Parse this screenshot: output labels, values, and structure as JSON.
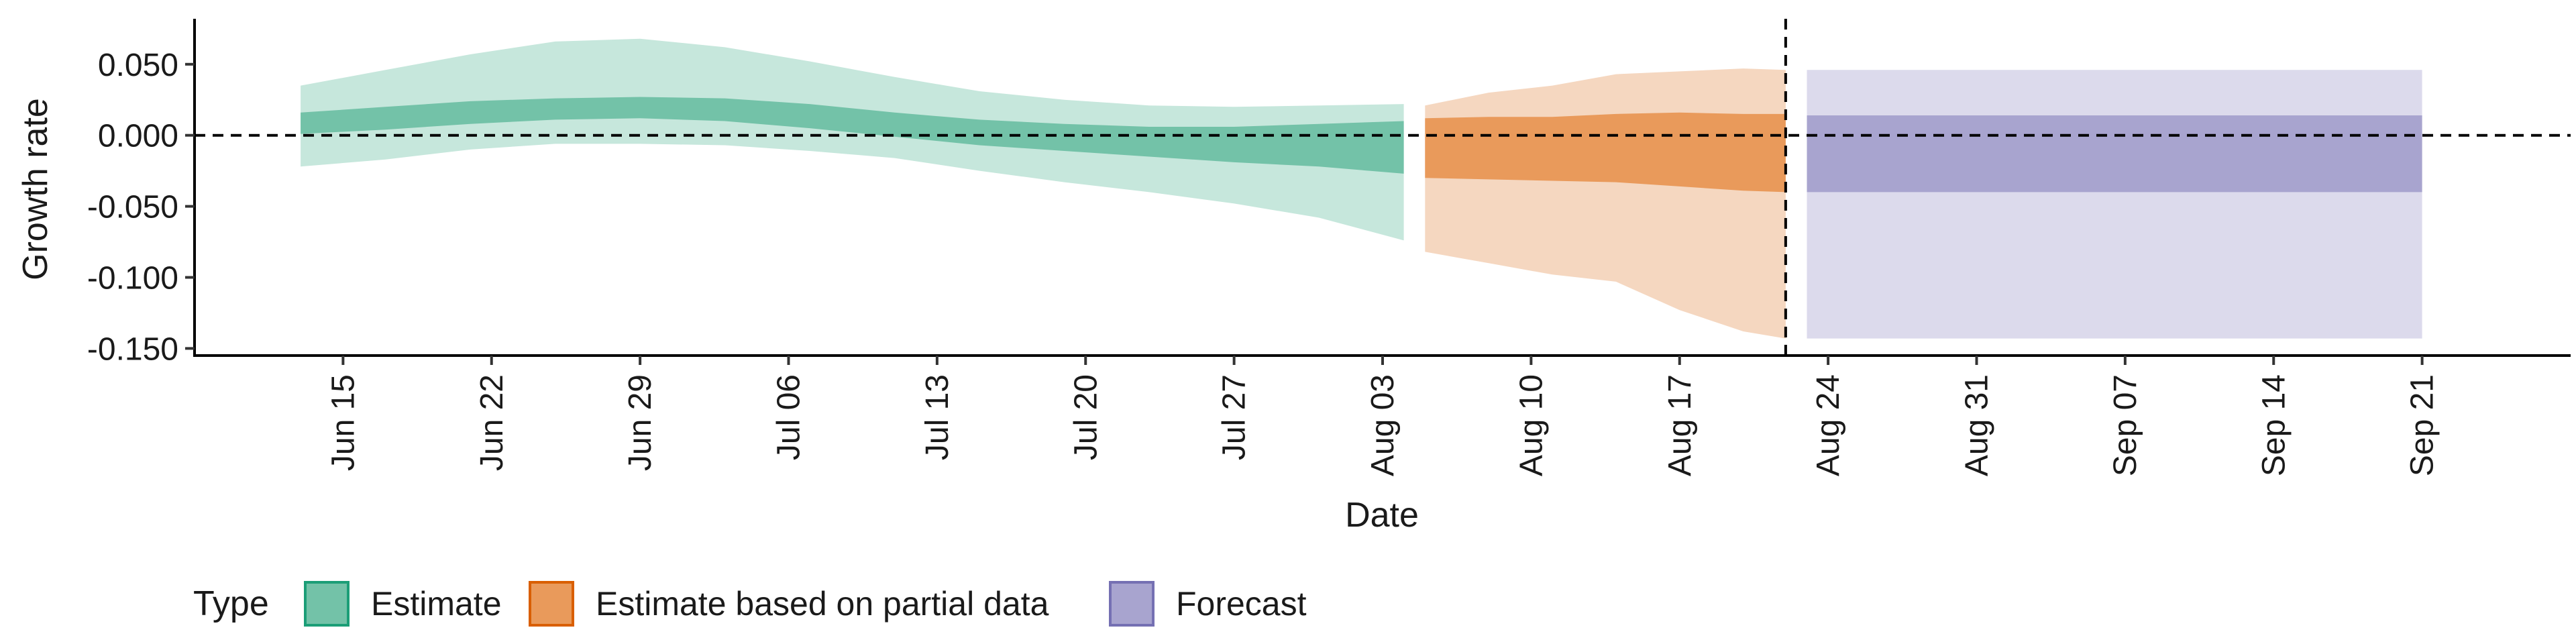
{
  "chart_data": {
    "type": "area",
    "xlabel": "Date",
    "ylabel": "Growth rate",
    "ylim": [
      -0.155,
      0.082
    ],
    "xlim": [
      "2020-06-08",
      "2020-09-28"
    ],
    "y_ticks": [
      0.05,
      0.0,
      -0.05,
      -0.1,
      -0.15
    ],
    "y_tick_labels": [
      "0.050",
      "0.000",
      "-0.050",
      "-0.100",
      "-0.150"
    ],
    "x_ticks": [
      "2020-06-15",
      "2020-06-22",
      "2020-06-29",
      "2020-07-06",
      "2020-07-13",
      "2020-07-20",
      "2020-07-27",
      "2020-08-03",
      "2020-08-10",
      "2020-08-17",
      "2020-08-24",
      "2020-08-31",
      "2020-09-07",
      "2020-09-14",
      "2020-09-21"
    ],
    "x_tick_labels": [
      "Jun 15",
      "Jun 22",
      "Jun 29",
      "Jul 06",
      "Jul 13",
      "Jul 20",
      "Jul 27",
      "Aug 03",
      "Aug 10",
      "Aug 17",
      "Aug 24",
      "Aug 31",
      "Sep 07",
      "Sep 14",
      "Sep 21"
    ],
    "reference_lines": {
      "horizontal_y": 0.0,
      "vertical_x": "2020-08-22"
    },
    "legend": {
      "title": "Type",
      "position": "bottom-left",
      "entries": [
        "Estimate",
        "Estimate based on partial data",
        "Forecast"
      ]
    },
    "series": [
      {
        "name": "Estimate",
        "color": "#1b9e77",
        "inner_fill": "#73c2a8",
        "outer_fill": "#c6e7dc",
        "x": [
          "2020-06-13",
          "2020-06-17",
          "2020-06-21",
          "2020-06-25",
          "2020-06-29",
          "2020-07-03",
          "2020-07-07",
          "2020-07-11",
          "2020-07-15",
          "2020-07-19",
          "2020-07-23",
          "2020-07-27",
          "2020-07-31",
          "2020-08-04"
        ],
        "lower90": [
          -0.022,
          -0.017,
          -0.01,
          -0.006,
          -0.006,
          -0.007,
          -0.011,
          -0.016,
          -0.025,
          -0.033,
          -0.04,
          -0.048,
          -0.058,
          -0.074
        ],
        "upper90": [
          0.035,
          0.046,
          0.057,
          0.066,
          0.068,
          0.062,
          0.052,
          0.041,
          0.031,
          0.025,
          0.021,
          0.02,
          0.021,
          0.022
        ],
        "lower50": [
          0.001,
          0.004,
          0.008,
          0.011,
          0.012,
          0.01,
          0.005,
          -0.001,
          -0.007,
          -0.011,
          -0.015,
          -0.019,
          -0.022,
          -0.027
        ],
        "upper50": [
          0.016,
          0.02,
          0.024,
          0.026,
          0.027,
          0.026,
          0.022,
          0.016,
          0.011,
          0.008,
          0.006,
          0.006,
          0.008,
          0.01
        ]
      },
      {
        "name": "Estimate based on partial data",
        "color": "#d95f02",
        "inner_fill": "#e99a5b",
        "outer_fill": "#f5d7c0",
        "x": [
          "2020-08-05",
          "2020-08-08",
          "2020-08-11",
          "2020-08-14",
          "2020-08-17",
          "2020-08-20",
          "2020-08-22"
        ],
        "lower90": [
          -0.082,
          -0.09,
          -0.098,
          -0.103,
          -0.123,
          -0.138,
          -0.143
        ],
        "upper90": [
          0.021,
          0.03,
          0.035,
          0.043,
          0.045,
          0.047,
          0.046
        ],
        "lower50": [
          -0.03,
          -0.031,
          -0.032,
          -0.033,
          -0.036,
          -0.039,
          -0.04
        ],
        "upper50": [
          0.012,
          0.013,
          0.013,
          0.015,
          0.016,
          0.015,
          0.015
        ]
      },
      {
        "name": "Forecast",
        "color": "#7570b3",
        "inner_fill": "#a8a4cf",
        "outer_fill": "#dcdaec",
        "x": [
          "2020-08-23",
          "2020-09-21"
        ],
        "lower90": [
          -0.143,
          -0.143
        ],
        "upper90": [
          0.046,
          0.046
        ],
        "lower50": [
          -0.04,
          -0.04
        ],
        "upper50": [
          0.014,
          0.014
        ]
      }
    ]
  }
}
